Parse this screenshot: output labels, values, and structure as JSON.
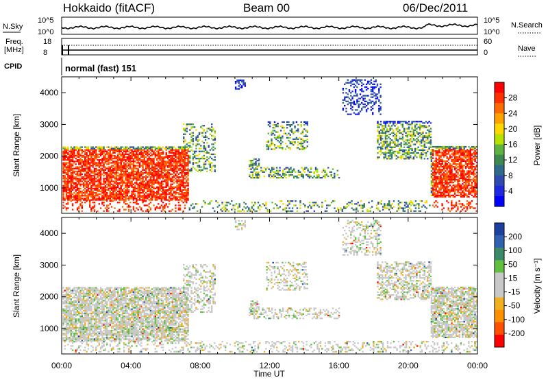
{
  "header": {
    "station": "Hokkaido (fitACF)",
    "beam": "Beam 00",
    "date": "06/Dec/2011"
  },
  "noise_panel": {
    "left_label": "N.Sky",
    "right_label": "N.Search",
    "left_ticks": [
      "10^5",
      "10^0"
    ],
    "right_ticks": [
      "10^5",
      "10^0"
    ]
  },
  "freq_panel": {
    "left_label_1": "Freq.",
    "left_label_2": "[MHz]",
    "right_label": "Nave",
    "left_ticks": [
      "18",
      "8"
    ],
    "right_ticks": [
      "60",
      "0"
    ]
  },
  "cpid": {
    "label": "CPID",
    "text": "normal (fast) 151"
  },
  "chart_data": [
    {
      "type": "heatmap",
      "ylabel": "Slant Range [km]",
      "xlabel": "Time UT",
      "x_ticks": [
        "00:00",
        "04:00",
        "08:00",
        "12:00",
        "16:00",
        "20:00",
        "00:00"
      ],
      "y_ticks": [
        1000,
        2000,
        3000,
        4000
      ],
      "xlim_hours": [
        0,
        24
      ],
      "ylim_km": [
        200,
        4500
      ],
      "colorbar": {
        "label": "Power [dB]",
        "ticks": [
          "28",
          "24",
          "20",
          "16",
          "12",
          "8",
          "4"
        ],
        "colors": [
          "#ff0000",
          "#ff3000",
          "#ff6a00",
          "#ffa300",
          "#ffd800",
          "#b8e000",
          "#5fb340",
          "#3c8a50",
          "#2f6a8a",
          "#2f4ab0",
          "#1f2ae0",
          "#0000ff"
        ]
      }
    },
    {
      "type": "heatmap",
      "ylabel": "Slant Range [km]",
      "xlabel": "Time UT",
      "x_ticks": [
        "00:00",
        "04:00",
        "08:00",
        "12:00",
        "16:00",
        "20:00",
        "00:00"
      ],
      "y_ticks": [
        1000,
        2000,
        3000,
        4000
      ],
      "xlim_hours": [
        0,
        24
      ],
      "ylim_km": [
        200,
        4500
      ],
      "colorbar": {
        "label": "Velocity [m s⁻¹]",
        "ticks": [
          "200",
          "100",
          "50",
          "15",
          "-15",
          "-50",
          "-100",
          "-200"
        ],
        "colors": [
          "#1d3fa0",
          "#3060b0",
          "#3a8a6a",
          "#60c040",
          "#c8c8c8",
          "#c8c8c8",
          "#f0b020",
          "#ff9000",
          "#ff5000",
          "#ff0000"
        ]
      }
    }
  ],
  "x_axis": {
    "label": "Time UT",
    "ticks": [
      "00:00",
      "04:00",
      "08:00",
      "12:00",
      "16:00",
      "20:00",
      "00:00"
    ]
  }
}
